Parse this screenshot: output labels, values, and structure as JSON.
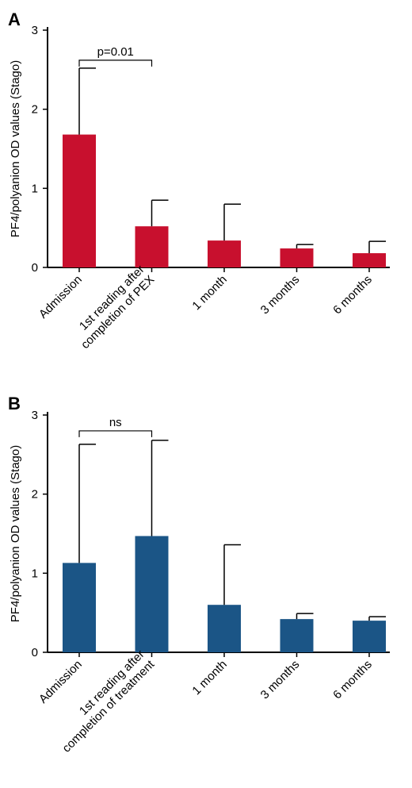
{
  "chart_data": [
    {
      "type": "bar",
      "panel_label": "A",
      "color": "#c8102e",
      "ylabel": "PF4/polyanion OD values (Stago)",
      "ylim": [
        0,
        3
      ],
      "yticks": [
        "0",
        "1",
        "2",
        "3"
      ],
      "categories": [
        [
          "Admission"
        ],
        [
          "1st reading after",
          "completion of PEX"
        ],
        [
          "1 month"
        ],
        [
          "3 months"
        ],
        [
          "6 months"
        ]
      ],
      "values": [
        1.68,
        0.52,
        0.34,
        0.24,
        0.18
      ],
      "error_upper": [
        2.52,
        0.85,
        0.8,
        0.29,
        0.33
      ],
      "significance": {
        "from": 0,
        "to": 1,
        "label": "p=0.01",
        "y": 2.62
      }
    },
    {
      "type": "bar",
      "panel_label": "B",
      "color": "#1b5586",
      "ylabel": "PF4/polyanion OD values (Stago)",
      "ylim": [
        0,
        3
      ],
      "yticks": [
        "0",
        "1",
        "2",
        "3"
      ],
      "categories": [
        [
          "Admission"
        ],
        [
          "1st reading after",
          "completion of treatment"
        ],
        [
          "1 month"
        ],
        [
          "3 months"
        ],
        [
          "6 months"
        ]
      ],
      "values": [
        1.13,
        1.47,
        0.6,
        0.42,
        0.4
      ],
      "error_upper": [
        2.63,
        2.68,
        1.36,
        0.49,
        0.45
      ],
      "significance": {
        "from": 0,
        "to": 1,
        "label": "ns",
        "y": 2.8
      }
    }
  ]
}
